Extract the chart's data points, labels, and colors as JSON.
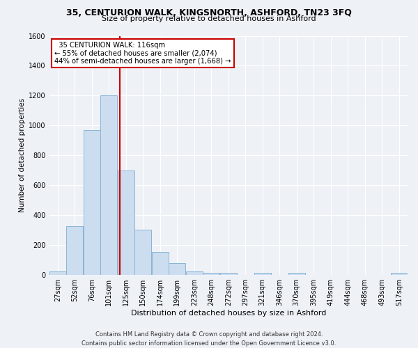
{
  "title1": "35, CENTURION WALK, KINGSNORTH, ASHFORD, TN23 3FQ",
  "title2": "Size of property relative to detached houses in Ashford",
  "xlabel": "Distribution of detached houses by size in Ashford",
  "ylabel": "Number of detached properties",
  "bar_labels": [
    "27sqm",
    "52sqm",
    "76sqm",
    "101sqm",
    "125sqm",
    "150sqm",
    "174sqm",
    "199sqm",
    "223sqm",
    "248sqm",
    "272sqm",
    "297sqm",
    "321sqm",
    "346sqm",
    "370sqm",
    "395sqm",
    "419sqm",
    "444sqm",
    "468sqm",
    "493sqm",
    "517sqm"
  ],
  "bar_values": [
    25,
    325,
    970,
    1200,
    700,
    305,
    155,
    80,
    25,
    15,
    15,
    0,
    15,
    0,
    15,
    0,
    0,
    0,
    0,
    0,
    15
  ],
  "bar_color": "#ccddf0",
  "bar_edge_color": "#8ab4d4",
  "annotation_text": "  35 CENTURION WALK: 116sqm  \n← 55% of detached houses are smaller (2,074)\n44% of semi-detached houses are larger (1,668) →",
  "vline_color": "#cc0000",
  "annot_box_color": "#ffffff",
  "annot_box_edge": "#cc0000",
  "ylim": [
    0,
    1600
  ],
  "yticks": [
    0,
    200,
    400,
    600,
    800,
    1000,
    1200,
    1400,
    1600
  ],
  "footnote": "Contains HM Land Registry data © Crown copyright and database right 2024.\nContains public sector information licensed under the Open Government Licence v3.0.",
  "bg_color": "#eef2f7",
  "grid_color": "#ffffff",
  "title1_fontsize": 9,
  "title2_fontsize": 8,
  "ylabel_fontsize": 7.5,
  "xlabel_fontsize": 8,
  "annot_fontsize": 7.2,
  "tick_fontsize": 7,
  "footnote_fontsize": 6
}
